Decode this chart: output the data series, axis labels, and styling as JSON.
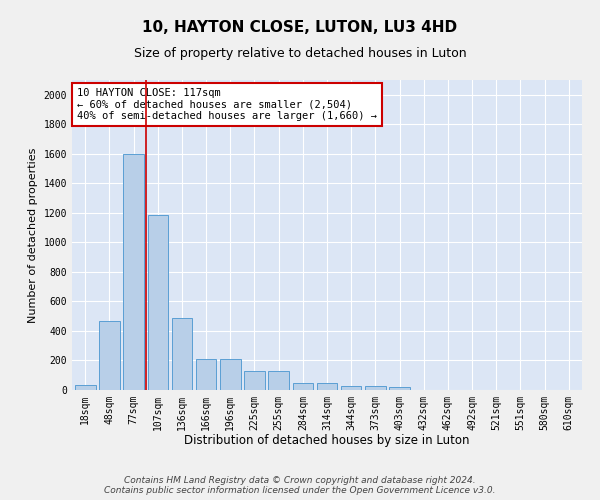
{
  "title": "10, HAYTON CLOSE, LUTON, LU3 4HD",
  "subtitle": "Size of property relative to detached houses in Luton",
  "xlabel": "Distribution of detached houses by size in Luton",
  "ylabel": "Number of detached properties",
  "categories": [
    "18sqm",
    "48sqm",
    "77sqm",
    "107sqm",
    "136sqm",
    "166sqm",
    "196sqm",
    "225sqm",
    "255sqm",
    "284sqm",
    "314sqm",
    "344sqm",
    "373sqm",
    "403sqm",
    "432sqm",
    "462sqm",
    "492sqm",
    "521sqm",
    "551sqm",
    "580sqm",
    "610sqm"
  ],
  "values": [
    35,
    465,
    1600,
    1185,
    490,
    210,
    210,
    130,
    130,
    50,
    50,
    30,
    25,
    20,
    0,
    0,
    0,
    0,
    0,
    0,
    0
  ],
  "bar_color": "#b8cfe8",
  "bar_edge_color": "#5a9fd4",
  "background_color": "#dce6f5",
  "grid_color": "#ffffff",
  "vline_color": "#cc0000",
  "vline_x_index": 2.5,
  "annotation_text": "10 HAYTON CLOSE: 117sqm\n← 60% of detached houses are smaller (2,504)\n40% of semi-detached houses are larger (1,660) →",
  "annotation_box_facecolor": "#ffffff",
  "annotation_box_edgecolor": "#cc0000",
  "footer_text": "Contains HM Land Registry data © Crown copyright and database right 2024.\nContains public sector information licensed under the Open Government Licence v3.0.",
  "ylim": [
    0,
    2100
  ],
  "yticks": [
    0,
    200,
    400,
    600,
    800,
    1000,
    1200,
    1400,
    1600,
    1800,
    2000
  ],
  "title_fontsize": 11,
  "subtitle_fontsize": 9,
  "xlabel_fontsize": 8.5,
  "ylabel_fontsize": 8,
  "tick_fontsize": 7,
  "annotation_fontsize": 7.5,
  "footer_fontsize": 6.5
}
